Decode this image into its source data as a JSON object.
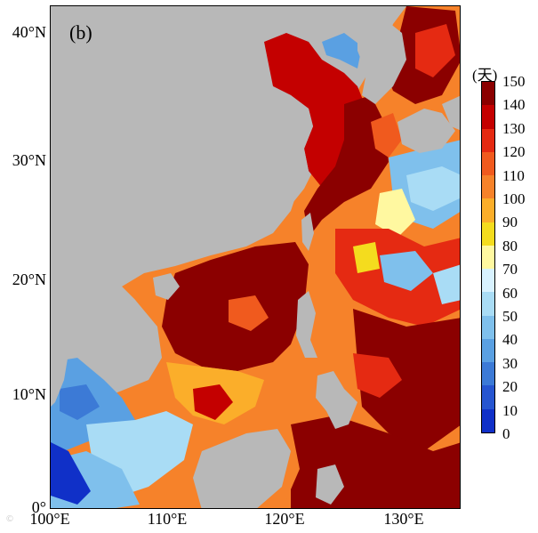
{
  "panel_label": "(b)",
  "colorbar": {
    "unit": "(天)",
    "ticks": [
      "150",
      "140",
      "130",
      "120",
      "110",
      "100",
      "90",
      "80",
      "70",
      "60",
      "50",
      "40",
      "30",
      "20",
      "10",
      "0"
    ],
    "colors": [
      "#8b0000",
      "#c40000",
      "#e52a12",
      "#f05a1e",
      "#f6822a",
      "#fbae2a",
      "#f4dc1e",
      "#fff8a0",
      "#d8f2ff",
      "#a9dcf5",
      "#7fc0ec",
      "#5aa0e2",
      "#3c7ad6",
      "#2655d0",
      "#1030c8"
    ]
  },
  "axes": {
    "lat_labels": [
      "40°N",
      "30°N",
      "20°N",
      "10°N",
      "0°"
    ],
    "lon_labels": [
      "100°E",
      "110°E",
      "120°E",
      "130°E"
    ]
  },
  "colors": {
    "land": "#b8b8b8",
    "ocean_default": "#fbae2a"
  },
  "watermark": "©"
}
